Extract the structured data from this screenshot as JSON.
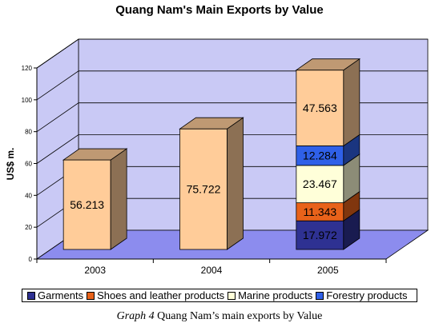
{
  "chart_data": {
    "type": "bar",
    "title": "Quang Nam's Main Exports by Value",
    "xlabel": "",
    "ylabel": "US$ m.",
    "ylim": [
      0,
      120
    ],
    "yticks": [
      "0",
      "20",
      "40",
      "60",
      "80",
      "100",
      "120"
    ],
    "categories": [
      "2003",
      "2004",
      "2005"
    ],
    "totals": [
      {
        "category": "2003",
        "value": 56.213,
        "label": "56.213"
      },
      {
        "category": "2004",
        "value": 75.722,
        "label": "75.722"
      }
    ],
    "series": [
      {
        "name": "Garments",
        "color": "#2E3192",
        "values": [
          null,
          null,
          17.972
        ],
        "labels": [
          "",
          "",
          "17.972"
        ]
      },
      {
        "name": "Shoes and leather products",
        "color": "#E8621A",
        "values": [
          null,
          null,
          11.343
        ],
        "labels": [
          "",
          "",
          "11.343"
        ]
      },
      {
        "name": "Marine products",
        "color": "#FFFFD9",
        "values": [
          null,
          null,
          23.467
        ],
        "labels": [
          "",
          "",
          "23.467"
        ]
      },
      {
        "name": "Forestry products",
        "color": "#2F60E8",
        "values": [
          null,
          null,
          12.284
        ],
        "labels": [
          "",
          "",
          "12.284"
        ]
      },
      {
        "name": "",
        "color": "#FFCC99",
        "values": [
          null,
          null,
          47.563
        ],
        "labels": [
          "",
          "",
          "47.563"
        ]
      }
    ],
    "legend": "bottom",
    "grid": true,
    "colors": {
      "wall": "#C9C9F5",
      "floor": "#8C8CEE",
      "total_bar": "#FFCC99"
    }
  },
  "caption": {
    "label": "Graph 4",
    "text": "Quang Nam’s main exports by Value"
  }
}
